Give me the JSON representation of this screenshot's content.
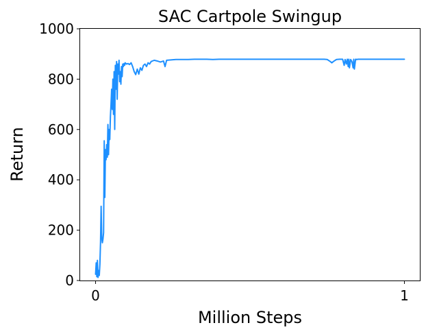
{
  "chart_data": {
    "type": "line",
    "title": "SAC Cartpole Swingup",
    "xlabel": "Million Steps",
    "ylabel": "Return",
    "xlim": [
      -0.05,
      1.05
    ],
    "ylim": [
      0,
      1000
    ],
    "xticks": [
      0,
      1
    ],
    "xtick_labels": [
      "0",
      "1"
    ],
    "yticks": [
      0,
      200,
      400,
      600,
      800,
      1000
    ],
    "ytick_labels": [
      "0",
      "200",
      "400",
      "600",
      "800",
      "1000"
    ],
    "grid": false,
    "legend": "none",
    "series": [
      {
        "color": "#1e90ff",
        "x": [
          0,
          0.002,
          0.004,
          0.006,
          0.008,
          0.01,
          0.012,
          0.014,
          0.016,
          0.018,
          0.02,
          0.022,
          0.024,
          0.026,
          0.028,
          0.03,
          0.032,
          0.034,
          0.036,
          0.038,
          0.04,
          0.042,
          0.044,
          0.046,
          0.048,
          0.05,
          0.052,
          0.054,
          0.056,
          0.058,
          0.06,
          0.062,
          0.064,
          0.066,
          0.068,
          0.07,
          0.072,
          0.074,
          0.076,
          0.078,
          0.08,
          0.082,
          0.084,
          0.086,
          0.088,
          0.09,
          0.092,
          0.094,
          0.096,
          0.1,
          0.105,
          0.11,
          0.115,
          0.12,
          0.125,
          0.13,
          0.135,
          0.14,
          0.145,
          0.15,
          0.155,
          0.16,
          0.165,
          0.17,
          0.175,
          0.18,
          0.19,
          0.2,
          0.21,
          0.215,
          0.22,
          0.225,
          0.23,
          0.24,
          0.26,
          0.28,
          0.3,
          0.32,
          0.34,
          0.36,
          0.38,
          0.4,
          0.42,
          0.44,
          0.46,
          0.48,
          0.5,
          0.52,
          0.54,
          0.56,
          0.58,
          0.6,
          0.62,
          0.64,
          0.66,
          0.68,
          0.7,
          0.72,
          0.74,
          0.75,
          0.76,
          0.765,
          0.77,
          0.78,
          0.79,
          0.8,
          0.805,
          0.808,
          0.812,
          0.815,
          0.818,
          0.82,
          0.822,
          0.826,
          0.83,
          0.834,
          0.836,
          0.838,
          0.842,
          0.846,
          0.85,
          0.86,
          0.88,
          0.9,
          0.92,
          0.94,
          0.96,
          0.98,
          1.0
        ],
        "y": [
          25,
          70,
          15,
          80,
          12,
          40,
          20,
          65,
          150,
          295,
          170,
          150,
          165,
          190,
          555,
          330,
          520,
          480,
          540,
          490,
          620,
          500,
          600,
          560,
          650,
          700,
          760,
          680,
          800,
          660,
          830,
          600,
          855,
          760,
          870,
          720,
          860,
          820,
          875,
          790,
          830,
          780,
          850,
          810,
          860,
          850,
          862,
          855,
          865,
          860,
          862,
          858,
          865,
          850,
          830,
          818,
          840,
          820,
          845,
          835,
          855,
          860,
          850,
          865,
          860,
          870,
          875,
          872,
          868,
          870,
          872,
          850,
          875,
          876,
          878,
          878,
          878,
          879,
          879,
          879,
          878,
          879,
          879,
          879,
          879,
          879,
          879,
          879,
          879,
          879,
          879,
          879,
          879,
          879,
          879,
          879,
          879,
          879,
          879,
          878,
          870,
          865,
          870,
          878,
          879,
          879,
          855,
          878,
          860,
          879,
          850,
          879,
          845,
          878,
          870,
          845,
          879,
          840,
          879,
          878,
          879,
          879,
          879,
          879,
          879,
          879,
          879,
          879,
          879
        ]
      }
    ]
  }
}
